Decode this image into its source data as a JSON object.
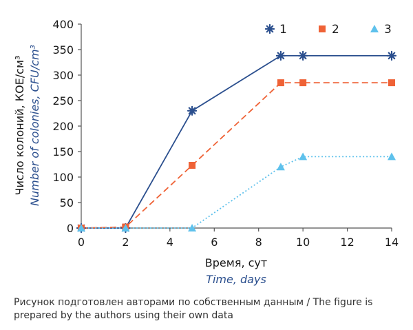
{
  "chart_data": {
    "type": "line",
    "x": [
      0,
      2,
      5,
      9,
      10,
      14
    ],
    "series": [
      {
        "name": "1",
        "values": [
          0,
          0,
          230,
          338,
          338,
          338
        ],
        "color": "#2b4f8e",
        "dash": "solid",
        "marker": "asterisk"
      },
      {
        "name": "2",
        "values": [
          0,
          2,
          123,
          285,
          285,
          285
        ],
        "color": "#ef6236",
        "dash": "dashed",
        "marker": "square"
      },
      {
        "name": "3",
        "values": [
          0,
          0,
          0,
          120,
          140,
          140
        ],
        "color": "#5ec1ec",
        "dash": "dotted",
        "marker": "triangle"
      }
    ],
    "xlim": [
      0,
      14
    ],
    "ylim": [
      0,
      400
    ],
    "xticks": [
      0,
      2,
      4,
      6,
      8,
      10,
      12,
      14
    ],
    "yticks": [
      0,
      50,
      100,
      150,
      200,
      250,
      300,
      350,
      400
    ],
    "xlabel": "Время, сут",
    "xlabel_en": "Time, days",
    "ylabel_ru": "Число колоний, КОЕ/см³",
    "ylabel_en": "Number of colonies, CFU/cm³",
    "legend": "top-right",
    "grid": false,
    "axis_color": "#555555"
  },
  "caption": "Рисунок подготовлен авторами по собственным данным / The figure is prepared by the authors using their own data"
}
